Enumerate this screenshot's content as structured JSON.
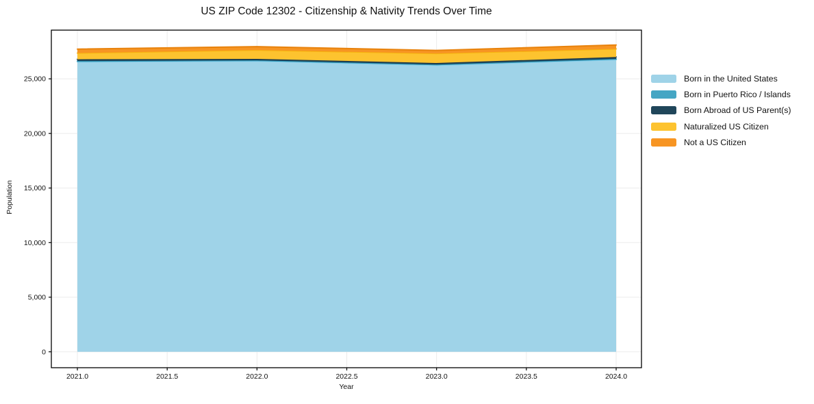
{
  "chart_data": {
    "type": "area",
    "stacked": true,
    "title": "US ZIP Code 12302 - Citizenship & Nativity Trends Over Time",
    "xlabel": "Year",
    "ylabel": "Population",
    "x": [
      2021,
      2022,
      2023,
      2024
    ],
    "series": [
      {
        "name": "Born in the United States",
        "values": [
          26550,
          26620,
          26240,
          26750
        ],
        "fill": "#9fd3e8",
        "line": "#87ceeb"
      },
      {
        "name": "Born in Puerto Rico / Islands",
        "values": [
          80,
          70,
          70,
          80
        ],
        "fill": "#45a6c4",
        "line": "#2d95b5"
      },
      {
        "name": "Born Abroad of US Parent(s)",
        "values": [
          160,
          140,
          140,
          170
        ],
        "fill": "#20465a",
        "line": "#17374a"
      },
      {
        "name": "Naturalized US Citizen",
        "values": [
          570,
          800,
          870,
          740
        ],
        "fill": "#fdc32f",
        "line": "#f6b40e"
      },
      {
        "name": "Not a US Citizen",
        "values": [
          360,
          320,
          280,
          360
        ],
        "fill": "#f79523",
        "line": "#e8820c"
      }
    ],
    "xticks": {
      "values": [
        2021,
        2021.5,
        2022,
        2022.5,
        2023,
        2023.5,
        2024
      ],
      "labels": [
        "2021.0",
        "2021.5",
        "2022.0",
        "2022.5",
        "2023.0",
        "2023.5",
        "2024.0"
      ]
    },
    "yticks": {
      "values": [
        0,
        5000,
        10000,
        15000,
        20000,
        25000
      ],
      "labels": [
        "0",
        "5,000",
        "10,000",
        "15,000",
        "20,000",
        "25,000"
      ]
    },
    "xlim": [
      2020.855,
      2024.141
    ],
    "ylim": [
      -1458,
      29460
    ],
    "grid": true,
    "grid_color": "#ebebeb",
    "frame_color": "#000000",
    "legend_position": "right-outside"
  }
}
